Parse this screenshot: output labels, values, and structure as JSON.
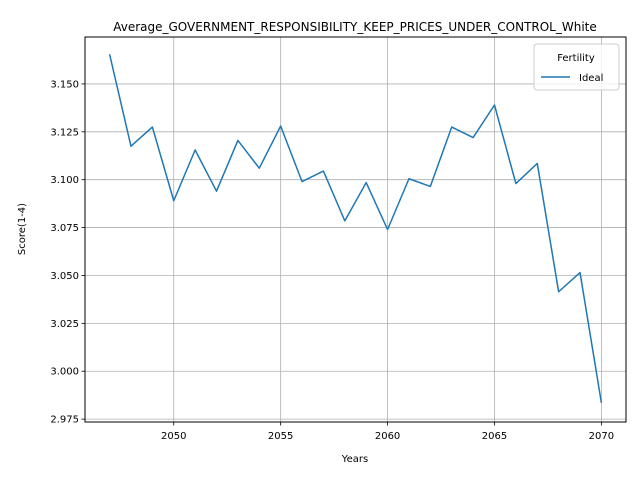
{
  "chart_data": {
    "type": "line",
    "title": "Average_GOVERNMENT_RESPONSIBILITY_KEEP_PRICES_UNDER_CONTROL_White",
    "xlabel": "Years",
    "ylabel": "Score(1-4)",
    "xlim": [
      2045.85,
      2071.15
    ],
    "ylim": [
      2.9735,
      3.1745
    ],
    "xticks": [
      2050,
      2055,
      2060,
      2065,
      2070
    ],
    "yticks": [
      2.975,
      3.0,
      3.025,
      3.05,
      3.075,
      3.1,
      3.125,
      3.15
    ],
    "ytick_labels": [
      "2.975",
      "3.000",
      "3.025",
      "3.050",
      "3.075",
      "3.100",
      "3.125",
      "3.150"
    ],
    "grid": true,
    "legend": {
      "title": "Fertility",
      "placement": "top-right"
    },
    "series": [
      {
        "name": "Ideal",
        "color": "#1f77b4",
        "x": [
          2047,
          2048,
          2049,
          2050,
          2051,
          2052,
          2053,
          2054,
          2055,
          2056,
          2057,
          2058,
          2059,
          2060,
          2061,
          2062,
          2063,
          2064,
          2065,
          2066,
          2067,
          2068,
          2069,
          2070
        ],
        "y": [
          3.1655,
          3.1175,
          3.1275,
          3.089,
          3.1155,
          3.094,
          3.1205,
          3.106,
          3.128,
          3.099,
          3.1045,
          3.0785,
          3.0985,
          3.074,
          3.1005,
          3.0965,
          3.1275,
          3.122,
          3.139,
          3.098,
          3.1085,
          3.0415,
          3.0515,
          2.9835
        ]
      }
    ]
  }
}
